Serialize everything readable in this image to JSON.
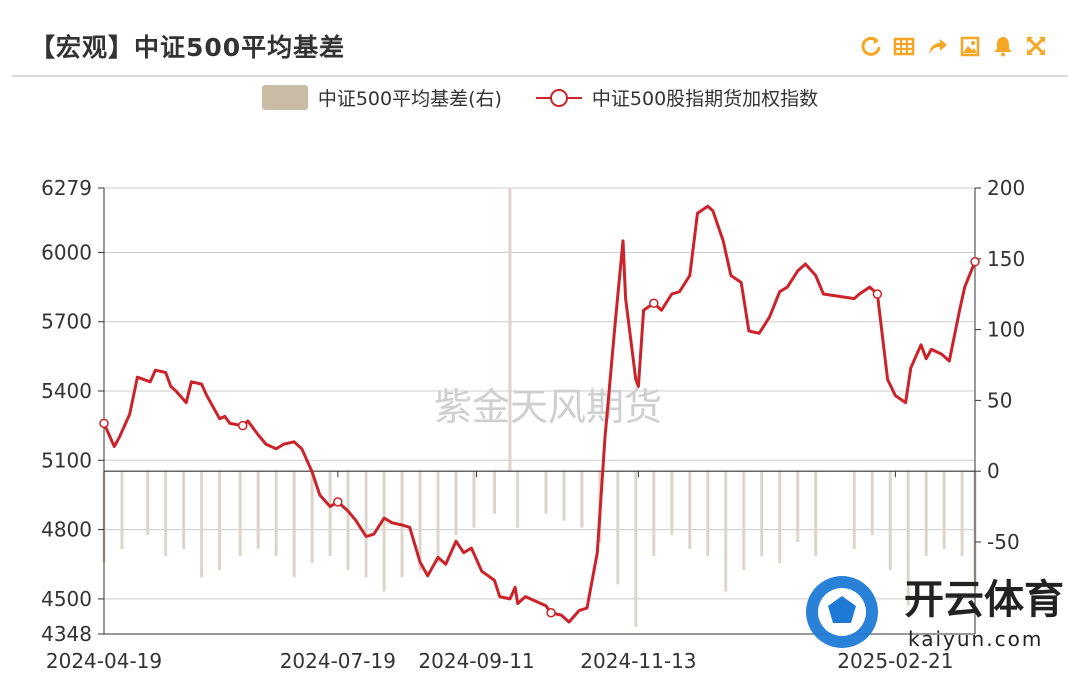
{
  "header": {
    "title": "【宏观】中证500平均基差"
  },
  "toolbar": [
    "refresh-icon",
    "data-table-icon",
    "share-icon",
    "save-image-icon",
    "alert-bell-icon",
    "fullscreen-icon"
  ],
  "colors": {
    "line": "#cc2229",
    "bar": "#ddd5c9",
    "legend_bar": "#c9bca7",
    "grid": "#cccccc",
    "axis": "#333333",
    "toolbar": "#f5a623",
    "logo_blue": "#1f7ad6",
    "logo_text": "#222222"
  },
  "watermark": "紫金天风期货",
  "logo": {
    "name": "开云体育",
    "domain": "kaiyun.com"
  },
  "chart_data": {
    "type": "line",
    "legend": [
      "中证500平均基差(右)",
      "中证500股指期货加权指数"
    ],
    "x_ticks": [
      "2024-04-19",
      "2024-07-19",
      "2024-09-11",
      "2024-11-13",
      "2025-02-21"
    ],
    "y_left": {
      "ticks": [
        "6279",
        "6000",
        "5700",
        "5400",
        "5100",
        "4800",
        "4500",
        "4348"
      ],
      "range": [
        4348,
        6279
      ]
    },
    "y_right": {
      "ticks": [
        "200",
        "150",
        "100",
        "50",
        "0",
        "-50"
      ],
      "range": [
        -115,
        200
      ]
    },
    "series": [
      {
        "name": "中证500股指期货加权指数",
        "axis": "left",
        "dates": [
          "2024-04-19",
          "2024-04-23",
          "2024-04-25",
          "2024-04-29",
          "2024-05-02",
          "2024-05-07",
          "2024-05-09",
          "2024-05-13",
          "2024-05-15",
          "2024-05-17",
          "2024-05-21",
          "2024-05-23",
          "2024-05-27",
          "2024-05-29",
          "2024-06-03",
          "2024-06-05",
          "2024-06-07",
          "2024-06-12",
          "2024-06-14",
          "2024-06-18",
          "2024-06-21",
          "2024-06-25",
          "2024-06-28",
          "2024-07-02",
          "2024-07-05",
          "2024-07-09",
          "2024-07-12",
          "2024-07-16",
          "2024-07-19",
          "2024-07-23",
          "2024-07-26",
          "2024-07-30",
          "2024-08-02",
          "2024-08-06",
          "2024-08-09",
          "2024-08-13",
          "2024-08-16",
          "2024-08-20",
          "2024-08-23",
          "2024-08-27",
          "2024-08-30",
          "2024-09-03",
          "2024-09-06",
          "2024-09-09",
          "2024-09-11",
          "2024-09-13",
          "2024-09-18",
          "2024-09-20",
          "2024-09-24",
          "2024-09-26",
          "2024-09-27",
          "2024-09-30",
          "2024-10-08",
          "2024-10-10",
          "2024-10-14",
          "2024-10-17",
          "2024-10-21",
          "2024-10-24",
          "2024-10-28",
          "2024-10-31",
          "2024-11-04",
          "2024-11-07",
          "2024-11-08",
          "2024-11-12",
          "2024-11-13",
          "2024-11-15",
          "2024-11-19",
          "2024-11-22",
          "2024-11-26",
          "2024-11-29",
          "2024-12-03",
          "2024-12-06",
          "2024-12-10",
          "2024-12-12",
          "2024-12-16",
          "2024-12-19",
          "2024-12-23",
          "2024-12-26",
          "2024-12-30",
          "2025-01-03",
          "2025-01-07",
          "2025-01-10",
          "2025-01-14",
          "2025-01-17",
          "2025-01-21",
          "2025-01-24",
          "2025-02-05",
          "2025-02-07",
          "2025-02-11",
          "2025-02-14",
          "2025-02-18",
          "2025-02-21",
          "2025-02-25",
          "2025-02-27",
          "2025-03-03",
          "2025-03-05",
          "2025-03-07",
          "2025-03-11",
          "2025-03-14",
          "2025-03-18",
          "2025-03-20",
          "2025-03-24"
        ],
        "values": [
          5260,
          5160,
          5200,
          5300,
          5460,
          5440,
          5490,
          5480,
          5420,
          5400,
          5350,
          5440,
          5430,
          5380,
          5280,
          5290,
          5260,
          5250,
          5270,
          5210,
          5170,
          5150,
          5170,
          5180,
          5150,
          5050,
          4950,
          4900,
          4920,
          4880,
          4840,
          4770,
          4780,
          4850,
          4830,
          4820,
          4810,
          4660,
          4600,
          4680,
          4650,
          4750,
          4700,
          4720,
          4670,
          4620,
          4580,
          4510,
          4500,
          4550,
          4480,
          4510,
          4470,
          4440,
          4430,
          4400,
          4450,
          4460,
          4700,
          5200,
          5700,
          6050,
          5800,
          5450,
          5420,
          5750,
          5780,
          5750,
          5820,
          5830,
          5900,
          6170,
          6200,
          6180,
          6050,
          5900,
          5870,
          5660,
          5650,
          5720,
          5830,
          5850,
          5920,
          5950,
          5900,
          5820,
          5800,
          5820,
          5850,
          5820,
          5450,
          5380,
          5350,
          5500,
          5600,
          5540,
          5580,
          5560,
          5530,
          5750,
          5850,
          5960
        ]
      },
      {
        "name": "中证500平均基差(右)",
        "axis": "right",
        "type": "bar",
        "dates": [
          "2024-04-19",
          "2024-04-26",
          "2024-05-06",
          "2024-05-13",
          "2024-05-20",
          "2024-05-27",
          "2024-06-03",
          "2024-06-11",
          "2024-06-18",
          "2024-06-25",
          "2024-07-02",
          "2024-07-09",
          "2024-07-16",
          "2024-07-23",
          "2024-07-30",
          "2024-08-06",
          "2024-08-13",
          "2024-08-20",
          "2024-08-27",
          "2024-09-03",
          "2024-09-10",
          "2024-09-18",
          "2024-09-24",
          "2024-09-27",
          "2024-10-08",
          "2024-10-15",
          "2024-10-22",
          "2024-10-29",
          "2024-11-05",
          "2024-11-12",
          "2024-11-19",
          "2024-11-26",
          "2024-12-03",
          "2024-12-10",
          "2024-12-17",
          "2024-12-24",
          "2024-12-31",
          "2025-01-07",
          "2025-01-14",
          "2025-01-21",
          "2025-02-05",
          "2025-02-12",
          "2025-02-19",
          "2025-02-26",
          "2025-03-05",
          "2025-03-12",
          "2025-03-19",
          "2025-03-24"
        ],
        "values": [
          -65,
          -55,
          -45,
          -60,
          -55,
          -75,
          -70,
          -60,
          -55,
          -60,
          -75,
          -65,
          -60,
          -70,
          -75,
          -85,
          -75,
          -70,
          -65,
          -45,
          -40,
          -30,
          200,
          -40,
          -30,
          -35,
          -40,
          -50,
          -80,
          -110,
          -60,
          -45,
          -55,
          -60,
          -85,
          -70,
          -60,
          -65,
          -50,
          -60,
          -55,
          -45,
          -70,
          -95,
          -60,
          -55,
          -60,
          -85
        ]
      }
    ],
    "grid": true
  }
}
